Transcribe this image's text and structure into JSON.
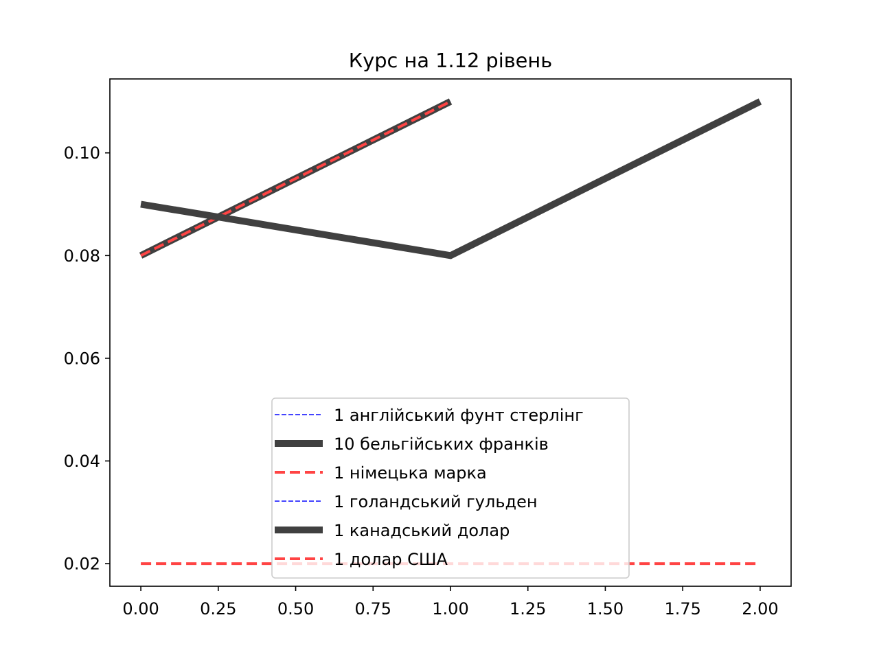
{
  "chart_data": {
    "type": "line",
    "title": "Курс на 1.12 рівень",
    "xlabel": "",
    "ylabel": "",
    "xlim": [
      -0.1,
      2.1
    ],
    "ylim": [
      0.0156,
      0.1144
    ],
    "x_ticks": [
      0.0,
      0.25,
      0.5,
      0.75,
      1.0,
      1.25,
      1.5,
      1.75,
      2.0
    ],
    "x_tick_labels": [
      "0.00",
      "0.25",
      "0.50",
      "0.75",
      "1.00",
      "1.25",
      "1.50",
      "1.75",
      "2.00"
    ],
    "y_ticks": [
      0.02,
      0.04,
      0.06,
      0.08,
      0.1
    ],
    "y_tick_labels": [
      "0.02",
      "0.04",
      "0.06",
      "0.08",
      "0.10"
    ],
    "grid": false,
    "legend_position": "lower center",
    "series": [
      {
        "name": "1 англійський фунт стерлінг",
        "x": [
          0,
          1
        ],
        "y": [
          0.08,
          0.11
        ],
        "color": "#4444ff",
        "style": "dashed-thin"
      },
      {
        "name": "10 бельгійських франків",
        "x": [
          0,
          1
        ],
        "y": [
          0.08,
          0.11
        ],
        "color": "#404040",
        "style": "solid-thick"
      },
      {
        "name": "1 німецька марка",
        "x": [
          0,
          1
        ],
        "y": [
          0.08,
          0.11
        ],
        "color": "#ff4444",
        "style": "dashed-medium"
      },
      {
        "name": "1 голандський гульден",
        "x": [
          0,
          1,
          2
        ],
        "y": [
          0.09,
          0.08,
          0.11
        ],
        "color": "#4444ff",
        "style": "dashed-thin"
      },
      {
        "name": "1 канадський долар",
        "x": [
          0,
          1,
          2
        ],
        "y": [
          0.09,
          0.08,
          0.11
        ],
        "color": "#404040",
        "style": "solid-thick"
      },
      {
        "name": "1 долар США",
        "x": [
          0,
          1,
          2
        ],
        "y": [
          0.02,
          0.02,
          0.02
        ],
        "color": "#ff4444",
        "style": "dashed-medium"
      }
    ]
  }
}
